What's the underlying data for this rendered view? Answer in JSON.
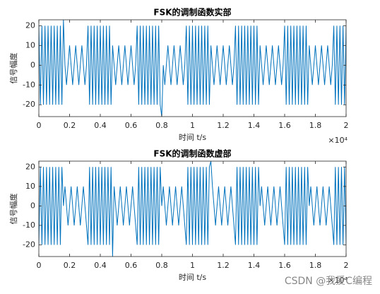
{
  "chart_data": [
    {
      "type": "line",
      "title": "FSK的调制函数实部",
      "x_label": "时间 t/s",
      "y_label": "信号幅度",
      "x_offset_label": "×10⁴",
      "xlim": [
        0,
        20000
      ],
      "ylim": [
        -26,
        23
      ],
      "xticks": [
        0,
        {
          "value": 2000,
          "label": "0.2"
        },
        {
          "value": 4000,
          "label": "0.4"
        },
        {
          "value": 6000,
          "label": "0.6"
        },
        {
          "value": 8000,
          "label": "0.8"
        },
        {
          "value": 10000,
          "label": "1"
        },
        {
          "value": 12000,
          "label": "1.2"
        },
        {
          "value": 14000,
          "label": "1.4"
        },
        {
          "value": 16000,
          "label": "1.6"
        },
        {
          "value": 18000,
          "label": "1.8"
        },
        {
          "value": 20000,
          "label": "2"
        }
      ],
      "yticks": [
        -20,
        -10,
        0,
        10,
        20
      ],
      "color": "#0072bd",
      "x": [
        0,
        100,
        200,
        300,
        400,
        500,
        600,
        700,
        800,
        900,
        1000,
        1100,
        1200,
        1300,
        1400,
        1500,
        1600,
        1700,
        1800,
        1900,
        2000,
        2100,
        2200,
        2300,
        2400,
        2500,
        2600,
        2700,
        2800,
        2900,
        3000,
        3100,
        3200,
        3300,
        3400,
        3500,
        3600,
        3700,
        3800,
        3900,
        4000,
        4100,
        4200,
        4300,
        4400,
        4500,
        4600,
        4700,
        4800,
        4900,
        5000,
        5100,
        5200,
        5300,
        5400,
        5500,
        5600,
        5700,
        5800,
        5900,
        6000,
        6100,
        6200,
        6300,
        6400,
        6500,
        6600,
        6700,
        6800,
        6900,
        7000,
        7100,
        7200,
        7300,
        7400,
        7500,
        7600,
        7700,
        7800,
        7900,
        8000,
        8100,
        8200,
        8300,
        8400,
        8500,
        8600,
        8700,
        8800,
        8900,
        9000,
        9100,
        9200,
        9300,
        9400,
        9500,
        9600,
        9700,
        9800,
        9900,
        10000,
        10100,
        10200,
        10300,
        10400,
        10500,
        10600,
        10700,
        10800,
        10900,
        11000,
        11100,
        11200,
        11300,
        11400,
        11500,
        11600,
        11700,
        11800,
        11900,
        12000,
        12100,
        12200,
        12300,
        12400,
        12500,
        12600,
        12700,
        12800,
        12900,
        13000,
        13100,
        13200,
        13300,
        13400,
        13500,
        13600,
        13700,
        13800,
        13900,
        14000,
        14100,
        14200,
        14300,
        14400,
        14500,
        14600,
        14700,
        14800,
        14900,
        15000,
        15100,
        15200,
        15300,
        15400,
        15500,
        15600,
        15700,
        15800,
        15900,
        16000,
        16100,
        16200,
        16300,
        16400,
        16500,
        16600,
        16700,
        16800,
        16900,
        17000,
        17100,
        17200,
        17300,
        17400,
        17500,
        17600,
        17700,
        17800,
        17900,
        18000,
        18100,
        18200,
        18300,
        18400,
        18500,
        18600,
        18700,
        18800,
        18900,
        19000,
        19100,
        19200,
        19300,
        19400,
        19500,
        19600,
        19700,
        19800,
        19900,
        20000
      ],
      "values": [
        20,
        -20,
        20,
        -20,
        20,
        -20,
        20,
        -20,
        20,
        -20,
        20,
        -20,
        20,
        -20,
        20,
        -20,
        23,
        0,
        -10,
        0,
        10,
        0,
        -10,
        0,
        10,
        0,
        -10,
        0,
        10,
        0,
        -10,
        0,
        20,
        -20,
        20,
        -20,
        20,
        -20,
        20,
        -20,
        20,
        -20,
        20,
        -20,
        20,
        -20,
        20,
        -20,
        10,
        0,
        -10,
        0,
        10,
        0,
        -10,
        0,
        10,
        0,
        -10,
        0,
        10,
        0,
        -10,
        0,
        20,
        -20,
        20,
        -20,
        20,
        -20,
        20,
        -20,
        20,
        -20,
        20,
        -20,
        20,
        -20,
        20,
        -20,
        -26,
        0,
        -10,
        0,
        10,
        0,
        -10,
        0,
        10,
        0,
        -10,
        0,
        10,
        0,
        -10,
        0,
        20,
        -20,
        20,
        -20,
        20,
        -20,
        20,
        -20,
        20,
        -20,
        20,
        -20,
        20,
        -20,
        20,
        -20,
        10,
        0,
        -10,
        0,
        10,
        0,
        -10,
        0,
        10,
        0,
        -10,
        0,
        10,
        0,
        -10,
        0,
        20,
        -20,
        20,
        -20,
        20,
        -20,
        20,
        -20,
        20,
        -20,
        20,
        -20,
        20,
        -20,
        20,
        -20,
        10,
        0,
        -10,
        0,
        10,
        0,
        -10,
        0,
        10,
        0,
        -10,
        0,
        10,
        0,
        -10,
        0,
        20,
        -20,
        20,
        -20,
        20,
        -20,
        20,
        -20,
        20,
        -20,
        20,
        -20,
        20,
        -20,
        20,
        -20,
        10,
        0,
        -10,
        0,
        10,
        0,
        -10,
        0,
        10,
        0,
        -10,
        0,
        10,
        0,
        -10,
        0,
        20,
        -20,
        20,
        -20,
        20,
        -20,
        20,
        -20,
        20
      ]
    },
    {
      "type": "line",
      "title": "FSK的调制函数虚部",
      "x_label": "时间 t/s",
      "y_label": "信号幅度",
      "x_offset_label": "×10⁴",
      "xlim": [
        0,
        20000
      ],
      "ylim": [
        -26,
        23
      ],
      "xticks": [
        0,
        {
          "value": 2000,
          "label": "0.2"
        },
        {
          "value": 4000,
          "label": "0.4"
        },
        {
          "value": 6000,
          "label": "0.6"
        },
        {
          "value": 8000,
          "label": "0.8"
        },
        {
          "value": 10000,
          "label": "1"
        },
        {
          "value": 12000,
          "label": "1.2"
        },
        {
          "value": 14000,
          "label": "1.4"
        },
        {
          "value": 16000,
          "label": "1.6"
        },
        {
          "value": 18000,
          "label": "1.8"
        },
        {
          "value": 20000,
          "label": "2"
        }
      ],
      "yticks": [
        -20,
        -10,
        0,
        10,
        20
      ],
      "color": "#0072bd",
      "x": [
        0,
        100,
        200,
        300,
        400,
        500,
        600,
        700,
        800,
        900,
        1000,
        1100,
        1200,
        1300,
        1400,
        1500,
        1600,
        1700,
        1800,
        1900,
        2000,
        2100,
        2200,
        2300,
        2400,
        2500,
        2600,
        2700,
        2800,
        2900,
        3000,
        3100,
        3200,
        3300,
        3400,
        3500,
        3600,
        3700,
        3800,
        3900,
        4000,
        4100,
        4200,
        4300,
        4400,
        4500,
        4600,
        4700,
        4800,
        4900,
        5000,
        5100,
        5200,
        5300,
        5400,
        5500,
        5600,
        5700,
        5800,
        5900,
        6000,
        6100,
        6200,
        6300,
        6400,
        6500,
        6600,
        6700,
        6800,
        6900,
        7000,
        7100,
        7200,
        7300,
        7400,
        7500,
        7600,
        7700,
        7800,
        7900,
        8000,
        8100,
        8200,
        8300,
        8400,
        8500,
        8600,
        8700,
        8800,
        8900,
        9000,
        9100,
        9200,
        9300,
        9400,
        9500,
        9600,
        9700,
        9800,
        9900,
        10000,
        10100,
        10200,
        10300,
        10400,
        10500,
        10600,
        10700,
        10800,
        10900,
        11000,
        11100,
        11200,
        11300,
        11400,
        11500,
        11600,
        11700,
        11800,
        11900,
        12000,
        12100,
        12200,
        12300,
        12400,
        12500,
        12600,
        12700,
        12800,
        12900,
        13000,
        13100,
        13200,
        13300,
        13400,
        13500,
        13600,
        13700,
        13800,
        13900,
        14000,
        14100,
        14200,
        14300,
        14400,
        14500,
        14600,
        14700,
        14800,
        14900,
        15000,
        15100,
        15200,
        15300,
        15400,
        15500,
        15600,
        15700,
        15800,
        15900,
        16000,
        16100,
        16200,
        16300,
        16400,
        16500,
        16600,
        16700,
        16800,
        16900,
        17000,
        17100,
        17200,
        17300,
        17400,
        17500,
        17600,
        17700,
        17800,
        17900,
        18000,
        18100,
        18200,
        18300,
        18400,
        18500,
        18600,
        18700,
        18800,
        18900,
        19000,
        19100,
        19200,
        19300,
        19400,
        19500,
        19600,
        19700,
        19800,
        19900,
        20000
      ],
      "values": [
        -20,
        20,
        -20,
        20,
        -20,
        20,
        -20,
        20,
        -20,
        20,
        -20,
        20,
        -20,
        20,
        -20,
        20,
        0,
        10,
        0,
        -10,
        0,
        10,
        0,
        -10,
        0,
        10,
        0,
        -10,
        0,
        10,
        0,
        -10,
        -20,
        20,
        -20,
        20,
        -20,
        20,
        -20,
        20,
        -20,
        20,
        -20,
        20,
        -20,
        20,
        -20,
        20,
        -26,
        10,
        0,
        -10,
        0,
        10,
        0,
        -10,
        0,
        10,
        0,
        -10,
        0,
        10,
        0,
        -10,
        -20,
        20,
        -20,
        20,
        -20,
        20,
        -20,
        20,
        -20,
        20,
        -20,
        20,
        -20,
        20,
        -20,
        20,
        0,
        10,
        0,
        -10,
        0,
        10,
        0,
        -10,
        0,
        10,
        0,
        -10,
        0,
        10,
        0,
        -10,
        -20,
        20,
        -20,
        20,
        -20,
        20,
        -20,
        20,
        -20,
        20,
        -20,
        20,
        -20,
        20,
        -20,
        20,
        23,
        10,
        0,
        -10,
        0,
        10,
        0,
        -10,
        0,
        10,
        0,
        -10,
        0,
        10,
        0,
        -10,
        -20,
        20,
        -20,
        20,
        -20,
        20,
        -20,
        20,
        -20,
        20,
        -20,
        20,
        -20,
        20,
        -20,
        20,
        0,
        10,
        0,
        -10,
        0,
        10,
        0,
        -10,
        0,
        10,
        0,
        -10,
        0,
        10,
        0,
        -10,
        -20,
        20,
        -20,
        20,
        -20,
        20,
        -20,
        20,
        -20,
        20,
        -20,
        20,
        -20,
        20,
        -20,
        20,
        0,
        10,
        0,
        -10,
        0,
        10,
        0,
        -10,
        0,
        10,
        0,
        -10,
        0,
        10,
        0,
        -10,
        -20,
        20,
        -20,
        20,
        -20,
        20,
        -20,
        20,
        -20
      ]
    }
  ],
  "watermark": "CSDN @我爱C编程"
}
